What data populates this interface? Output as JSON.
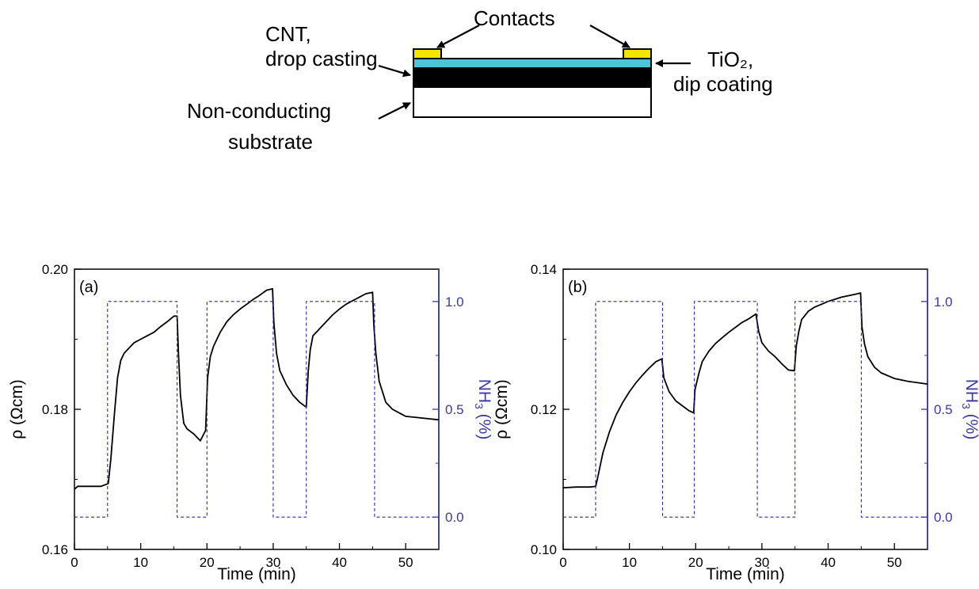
{
  "diagram": {
    "contacts_label": "Contacts",
    "cnt_label_line1": "CNT,",
    "cnt_label_line2": "drop casting",
    "tio2_label_line1": "TiO₂,",
    "tio2_label_line2": "dip coating",
    "substrate_label_line1": "Non-conducting",
    "substrate_label_line2": "substrate",
    "colors": {
      "contact": "#f2e600",
      "tio2": "#4fc3d9",
      "cnt": "#000000",
      "substrate": "#ffffff"
    }
  },
  "chart_data": [
    {
      "type": "line",
      "panel_label": "(a)",
      "xlabel": "Time (min)",
      "ylabel": "ρ (Ωcm)",
      "y2label": "NH3 (%)",
      "xlim": [
        0,
        55
      ],
      "ylim": [
        0.16,
        0.2
      ],
      "y2lim": [
        -0.15,
        1.15
      ],
      "xticks": [
        "0",
        "10",
        "20",
        "30",
        "40",
        "50"
      ],
      "yticks": [
        "0.16",
        "0.18",
        "0.20"
      ],
      "y2ticks": [
        "0.0",
        "0.5",
        "1.0"
      ],
      "colors": {
        "rho": "#000000",
        "nh3": "#2b2b9e",
        "right_axis": "#3a3aa0"
      },
      "series": [
        {
          "axis": "left",
          "style": "solid",
          "x": [
            0,
            0.5,
            2,
            4,
            5.1,
            5.5,
            6,
            6.5,
            7,
            7.5,
            8,
            9,
            10,
            11,
            12,
            13,
            14,
            15,
            15.5,
            15.7,
            16,
            16.5,
            17,
            18,
            19,
            19.8,
            20.1,
            20.5,
            21,
            22,
            23,
            24,
            25,
            26,
            27,
            28,
            29,
            29.9,
            30.1,
            30.5,
            31,
            32,
            33,
            34,
            35,
            35.3,
            35.6,
            36,
            37,
            38,
            39,
            40,
            41,
            42,
            43,
            44,
            45,
            45.2,
            45.5,
            46,
            47,
            48,
            49,
            50,
            52,
            55
          ],
          "values": [
            0.1686,
            0.169,
            0.169,
            0.169,
            0.1694,
            0.173,
            0.179,
            0.1845,
            0.187,
            0.188,
            0.1885,
            0.1895,
            0.19,
            0.1905,
            0.191,
            0.1918,
            0.1925,
            0.1933,
            0.1933,
            0.188,
            0.182,
            0.178,
            0.1772,
            0.1765,
            0.1755,
            0.177,
            0.1845,
            0.1875,
            0.189,
            0.191,
            0.1925,
            0.1935,
            0.1943,
            0.195,
            0.1957,
            0.1963,
            0.197,
            0.1972,
            0.1925,
            0.188,
            0.1855,
            0.1835,
            0.182,
            0.181,
            0.1803,
            0.1855,
            0.1885,
            0.1905,
            0.1915,
            0.1925,
            0.1935,
            0.1943,
            0.195,
            0.1955,
            0.196,
            0.1965,
            0.1967,
            0.192,
            0.188,
            0.184,
            0.181,
            0.18,
            0.1795,
            0.179,
            0.1788,
            0.1785
          ]
        },
        {
          "axis": "right",
          "style": "dashed",
          "x": [
            0,
            5,
            5,
            15.5,
            15.5,
            20,
            20,
            30,
            30,
            35,
            35,
            45.3,
            45.3,
            55
          ],
          "values": [
            0,
            0,
            1,
            1,
            0,
            0,
            1,
            1,
            0,
            0,
            1,
            1,
            0,
            0
          ]
        }
      ]
    },
    {
      "type": "line",
      "panel_label": "(b)",
      "xlabel": "Time (min)",
      "ylabel": "ρ (Ωcm)",
      "y2label": "NH3 (%)",
      "xlim": [
        0,
        55
      ],
      "ylim": [
        0.1,
        0.14
      ],
      "y2lim": [
        -0.15,
        1.15
      ],
      "xticks": [
        "0",
        "10",
        "20",
        "30",
        "40",
        "50"
      ],
      "yticks": [
        "0.10",
        "0.12",
        "0.14"
      ],
      "y2ticks": [
        "0.0",
        "0.5",
        "1.0"
      ],
      "colors": {
        "rho": "#000000",
        "nh3": "#2b2b9e",
        "right_axis": "#3a3aa0"
      },
      "series": [
        {
          "axis": "left",
          "style": "solid",
          "x": [
            0,
            2,
            4,
            4.9,
            5.2,
            6,
            7,
            8,
            9,
            10,
            11,
            12,
            13,
            14,
            14.9,
            15.2,
            16,
            17,
            18,
            19,
            19.7,
            19.9,
            20.5,
            21,
            22,
            23,
            24,
            25,
            26,
            27,
            28,
            29.1,
            29.5,
            30,
            31,
            32,
            33,
            34,
            34.9,
            35.2,
            35.6,
            36,
            37,
            38,
            39,
            40,
            41,
            42,
            43,
            44,
            44.9,
            45.1,
            45.5,
            46,
            47,
            48,
            49,
            50,
            52,
            55
          ],
          "values": [
            0.1088,
            0.1089,
            0.1089,
            0.109,
            0.1102,
            0.1138,
            0.1168,
            0.1192,
            0.121,
            0.1225,
            0.1238,
            0.1249,
            0.1259,
            0.1268,
            0.1272,
            0.1245,
            0.1225,
            0.1212,
            0.1205,
            0.1198,
            0.1195,
            0.1228,
            0.1252,
            0.1268,
            0.1283,
            0.1294,
            0.1302,
            0.131,
            0.1317,
            0.1324,
            0.1329,
            0.1336,
            0.1312,
            0.1295,
            0.1283,
            0.1275,
            0.1265,
            0.1256,
            0.1255,
            0.1291,
            0.1312,
            0.1328,
            0.134,
            0.1346,
            0.135,
            0.1354,
            0.1357,
            0.136,
            0.1362,
            0.1364,
            0.1366,
            0.1318,
            0.1293,
            0.1275,
            0.126,
            0.1252,
            0.1248,
            0.1244,
            0.124,
            0.1236
          ]
        },
        {
          "axis": "right",
          "style": "dashed",
          "x": [
            0,
            4.9,
            4.9,
            15,
            15,
            19.8,
            19.8,
            29.3,
            29.3,
            35,
            35,
            45,
            45,
            55
          ],
          "values": [
            0,
            0,
            1,
            1,
            0,
            0,
            1,
            1,
            0,
            0,
            1,
            1,
            0,
            0
          ]
        }
      ]
    }
  ]
}
